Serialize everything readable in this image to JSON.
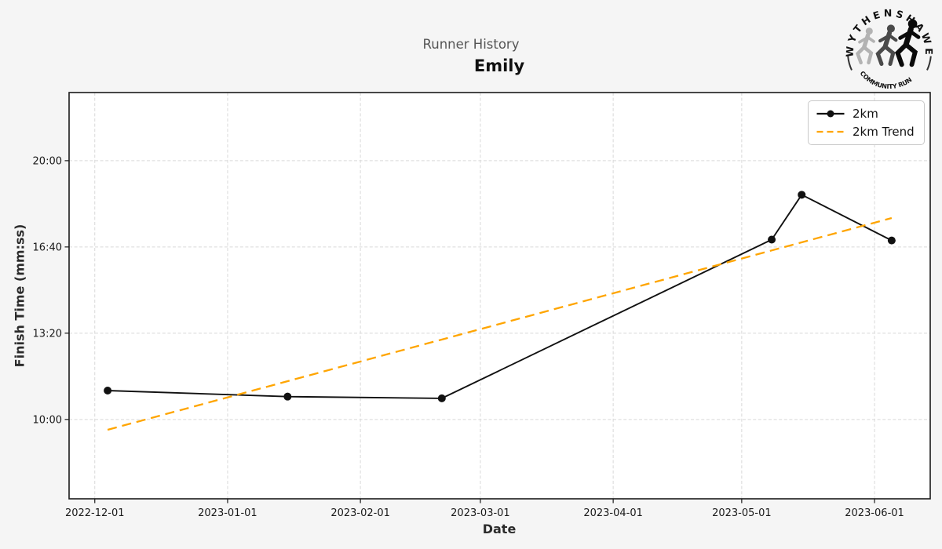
{
  "window": {
    "background": "#f5f5f5"
  },
  "logo": {
    "top_text": "WYTHENSHAWE",
    "bottom_text": "COMMUNITY RUN",
    "text_color": "#111111",
    "runner_colors": [
      "#b3b3b3",
      "#4a4a4a",
      "#0a0a0a"
    ]
  },
  "chart_data": {
    "type": "line",
    "suptitle": "Runner History",
    "title": "Emily",
    "xlabel": "Date",
    "ylabel": "Finish Time (mm:ss)",
    "grid": true,
    "legend_position": "upper right",
    "x_ticks": [
      "2022-12-01",
      "2023-01-01",
      "2023-02-01",
      "2023-03-01",
      "2023-04-01",
      "2023-05-01",
      "2023-06-01"
    ],
    "y_ticks": [
      "10:00",
      "13:20",
      "16:40",
      "20:00"
    ],
    "xlim": [
      "2022-11-25",
      "2023-06-14"
    ],
    "ylim_mmss": [
      "6:56",
      "22:38"
    ],
    "colors": {
      "series": "#111111",
      "trend": "#ffa500",
      "grid": "#d9d9d9",
      "spine": "#1a1a1a",
      "plot_bg": "#ffffff",
      "tick_text": "#1a1a1a"
    },
    "series": [
      {
        "name": "2km",
        "style": "solid",
        "marker": "circle",
        "color": "#111111",
        "points": [
          {
            "date": "2022-12-04",
            "time": "11:07"
          },
          {
            "date": "2023-01-15",
            "time": "10:53"
          },
          {
            "date": "2023-02-20",
            "time": "10:49"
          },
          {
            "date": "2023-05-08",
            "time": "16:57"
          },
          {
            "date": "2023-05-15",
            "time": "18:41"
          },
          {
            "date": "2023-06-05",
            "time": "16:55"
          }
        ]
      },
      {
        "name": "2km Trend",
        "style": "dashed",
        "marker": "none",
        "color": "#ffa500",
        "points": [
          {
            "date": "2022-12-04",
            "time": "9:36"
          },
          {
            "date": "2023-06-05",
            "time": "17:47"
          }
        ]
      }
    ]
  }
}
